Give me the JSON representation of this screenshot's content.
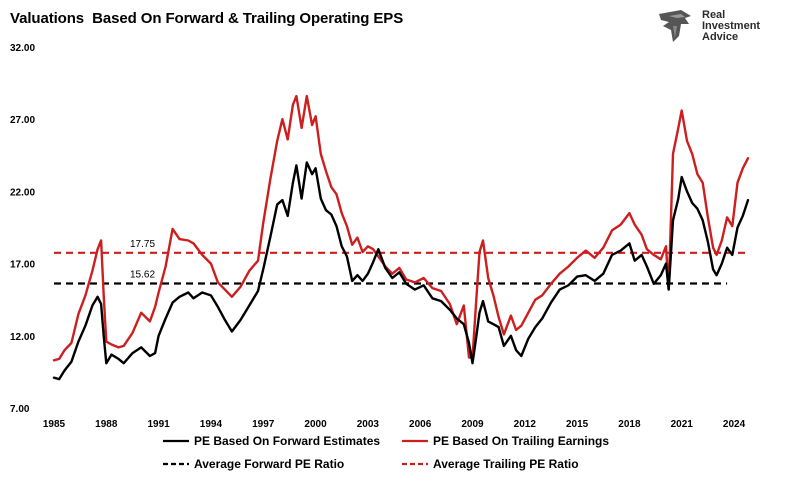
{
  "title": "Valuations  Based On Forward & Trailing Operating EPS",
  "logo": {
    "line1": "Real",
    "line2": "Investment",
    "line3": "Advice"
  },
  "chart_data": {
    "type": "line",
    "title": "Valuations  Based On Forward & Trailing Operating EPS",
    "xlabel": "",
    "ylabel": "",
    "xlim": [
      1985,
      2024.8
    ],
    "ylim": [
      7,
      32
    ],
    "x_ticks": [
      "1985",
      "1988",
      "1991",
      "1994",
      "1997",
      "2000",
      "2003",
      "2006",
      "2009",
      "2012",
      "2015",
      "2018",
      "2021",
      "2024"
    ],
    "y_ticks": [
      "32.00",
      "27.00",
      "22.00",
      "17.00",
      "12.00",
      "7.00"
    ],
    "grid": false,
    "legend_position": "bottom",
    "colors": {
      "forward": "#000000",
      "trailing": "#cc1f1f"
    },
    "series": [
      {
        "name": "PE Based On Forward Estimates",
        "style": "solid",
        "x": [
          1985,
          1985.3,
          1985.6,
          1986,
          1986.4,
          1986.8,
          1987.2,
          1987.5,
          1987.7,
          1987.85,
          1988,
          1988.3,
          1988.7,
          1989,
          1989.5,
          1990,
          1990.5,
          1990.8,
          1991,
          1991.4,
          1991.8,
          1992.2,
          1992.7,
          1993,
          1993.5,
          1994,
          1994.4,
          1994.8,
          1995.2,
          1995.7,
          1996.2,
          1996.7,
          1997,
          1997.4,
          1997.8,
          1998.1,
          1998.4,
          1998.7,
          1998.9,
          1999.2,
          1999.5,
          1999.8,
          2000,
          2000.3,
          2000.6,
          2000.9,
          2001.2,
          2001.5,
          2001.8,
          2002.1,
          2002.4,
          2002.7,
          2003,
          2003.3,
          2003.6,
          2004,
          2004.4,
          2004.8,
          2005.2,
          2005.7,
          2006.2,
          2006.7,
          2007.2,
          2007.7,
          2008.1,
          2008.5,
          2008.8,
          2009,
          2009.2,
          2009.4,
          2009.6,
          2009.9,
          2010.2,
          2010.5,
          2010.8,
          2011.2,
          2011.5,
          2011.8,
          2012.2,
          2012.6,
          2013,
          2013.5,
          2014,
          2014.5,
          2015,
          2015.5,
          2016,
          2016.5,
          2017,
          2017.5,
          2018,
          2018.3,
          2018.7,
          2019,
          2019.4,
          2019.8,
          2020.1,
          2020.25,
          2020.5,
          2020.8,
          2021,
          2021.3,
          2021.6,
          2021.9,
          2022.2,
          2022.5,
          2022.8,
          2023,
          2023.3,
          2023.6,
          2023.9,
          2024.2,
          2024.5,
          2024.8
        ],
        "y": [
          9.1,
          9.0,
          9.6,
          10.2,
          11.6,
          12.7,
          14.1,
          14.7,
          14.2,
          12.0,
          10.1,
          10.7,
          10.4,
          10.1,
          10.8,
          11.2,
          10.6,
          10.8,
          12.0,
          13.2,
          14.3,
          14.7,
          15.0,
          14.6,
          15.0,
          14.8,
          14.0,
          13.1,
          12.3,
          13.1,
          14.1,
          15.1,
          16.6,
          18.8,
          21.1,
          21.4,
          20.3,
          22.6,
          23.8,
          21.5,
          24.0,
          23.2,
          23.6,
          21.5,
          20.7,
          20.4,
          19.6,
          18.2,
          17.5,
          15.8,
          16.2,
          15.8,
          16.3,
          17.1,
          18.0,
          16.7,
          16.0,
          16.4,
          15.6,
          15.2,
          15.5,
          14.6,
          14.4,
          13.8,
          13.2,
          12.8,
          11.5,
          10.1,
          11.8,
          13.6,
          14.4,
          13.0,
          12.8,
          12.6,
          11.3,
          12.0,
          11.0,
          10.6,
          11.8,
          12.6,
          13.2,
          14.3,
          15.2,
          15.5,
          16.1,
          16.2,
          15.8,
          16.3,
          17.6,
          17.9,
          18.4,
          17.2,
          17.6,
          16.8,
          15.6,
          16.2,
          17.0,
          15.2,
          20.0,
          21.5,
          23.0,
          22.0,
          21.2,
          20.8,
          20.0,
          18.5,
          16.6,
          16.2,
          17.0,
          18.1,
          17.6,
          19.5,
          20.3,
          21.4
        ]
      },
      {
        "name": "PE Based On Trailing Earnings",
        "style": "solid",
        "x": [
          1985,
          1985.3,
          1985.6,
          1986,
          1986.4,
          1986.8,
          1987.2,
          1987.5,
          1987.7,
          1987.85,
          1988,
          1988.3,
          1988.7,
          1989,
          1989.5,
          1990,
          1990.5,
          1990.8,
          1991,
          1991.4,
          1991.8,
          1992.2,
          1992.7,
          1993,
          1993.5,
          1994,
          1994.4,
          1994.8,
          1995.2,
          1995.7,
          1996.2,
          1996.7,
          1997,
          1997.4,
          1997.8,
          1998.1,
          1998.4,
          1998.7,
          1998.9,
          1999.2,
          1999.5,
          1999.8,
          2000,
          2000.3,
          2000.6,
          2000.9,
          2001.2,
          2001.5,
          2001.8,
          2002.1,
          2002.4,
          2002.7,
          2003,
          2003.3,
          2003.6,
          2004,
          2004.4,
          2004.8,
          2005.2,
          2005.7,
          2006.2,
          2006.7,
          2007.2,
          2007.7,
          2008.1,
          2008.5,
          2008.8,
          2009,
          2009.2,
          2009.4,
          2009.6,
          2009.9,
          2010.2,
          2010.5,
          2010.8,
          2011.2,
          2011.5,
          2011.8,
          2012.2,
          2012.6,
          2013,
          2013.5,
          2014,
          2014.5,
          2015,
          2015.5,
          2016,
          2016.5,
          2017,
          2017.5,
          2018,
          2018.3,
          2018.7,
          2019,
          2019.4,
          2019.8,
          2020.1,
          2020.25,
          2020.5,
          2020.8,
          2021,
          2021.3,
          2021.6,
          2021.9,
          2022.2,
          2022.5,
          2022.8,
          2023,
          2023.3,
          2023.6,
          2023.9,
          2024.2,
          2024.5,
          2024.8
        ],
        "y": [
          10.3,
          10.4,
          11.0,
          11.5,
          13.5,
          14.8,
          16.5,
          18.0,
          18.6,
          14.8,
          11.6,
          11.4,
          11.2,
          11.3,
          12.2,
          13.6,
          13.0,
          14.0,
          15.0,
          16.8,
          19.4,
          18.7,
          18.6,
          18.4,
          17.6,
          17.0,
          15.7,
          15.2,
          14.7,
          15.4,
          16.5,
          17.2,
          19.8,
          22.8,
          25.5,
          27.0,
          25.6,
          28.0,
          28.6,
          26.4,
          28.6,
          26.6,
          27.2,
          24.6,
          23.4,
          22.3,
          21.8,
          20.5,
          19.6,
          18.3,
          18.8,
          17.8,
          18.2,
          18.0,
          17.5,
          16.8,
          16.3,
          16.7,
          15.9,
          15.7,
          16.0,
          15.3,
          15.1,
          14.2,
          12.8,
          14.1,
          10.5,
          10.5,
          14.2,
          17.8,
          18.6,
          16.0,
          14.8,
          13.3,
          12.1,
          13.4,
          12.4,
          12.7,
          13.6,
          14.5,
          14.8,
          15.6,
          16.3,
          16.8,
          17.4,
          17.9,
          17.4,
          18.1,
          19.3,
          19.7,
          20.5,
          19.7,
          19.0,
          18.0,
          17.6,
          17.3,
          18.2,
          15.2,
          24.6,
          26.4,
          27.6,
          25.5,
          24.6,
          23.2,
          22.6,
          20.2,
          18.1,
          17.6,
          18.6,
          20.2,
          19.6,
          22.6,
          23.6,
          24.3
        ]
      },
      {
        "name": "Average Forward PE Ratio",
        "style": "dashed",
        "value": 15.62,
        "label": "15.62",
        "x": [
          1985,
          2023.6
        ],
        "y": [
          15.62,
          15.62
        ]
      },
      {
        "name": "Average Trailing PE Ratio",
        "style": "dashed",
        "value": 17.75,
        "label": "17.75",
        "x": [
          1985,
          2024.8
        ],
        "y": [
          17.75,
          17.75
        ]
      }
    ]
  }
}
